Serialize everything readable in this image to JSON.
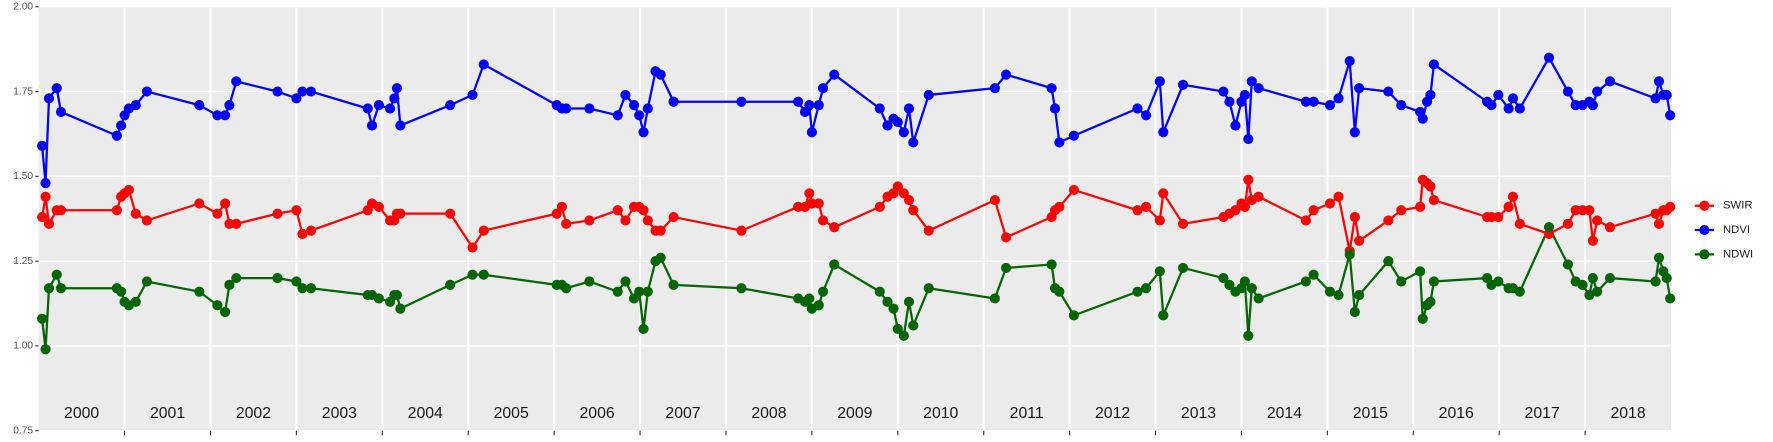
{
  "chart_data": {
    "type": "line",
    "x": [
      2000.04,
      2000.08,
      2000.12,
      2000.21,
      2000.26,
      2000.91,
      2000.96,
      2001.0,
      2001.05,
      2001.13,
      2001.26,
      2001.87,
      2002.08,
      2002.17,
      2002.22,
      2002.3,
      2002.78,
      2003.0,
      2003.07,
      2003.17,
      2003.83,
      2003.88,
      2003.96,
      2004.09,
      2004.14,
      2004.17,
      2004.21,
      2004.79,
      2005.05,
      2005.18,
      2006.03,
      2006.09,
      2006.14,
      2006.41,
      2006.74,
      2006.83,
      2006.93,
      2006.99,
      2007.04,
      2007.09,
      2007.18,
      2007.24,
      2007.39,
      2008.18,
      2008.84,
      2008.92,
      2008.97,
      2009.0,
      2009.08,
      2009.13,
      2009.26,
      2009.79,
      2009.88,
      2009.95,
      2010.0,
      2010.07,
      2010.13,
      2010.18,
      2010.36,
      2011.13,
      2011.26,
      2011.79,
      2011.83,
      2011.88,
      2012.05,
      2012.79,
      2012.89,
      2013.05,
      2013.09,
      2013.32,
      2013.79,
      2013.86,
      2013.93,
      2014.0,
      2014.04,
      2014.08,
      2014.12,
      2014.2,
      2014.75,
      2014.84,
      2015.03,
      2015.13,
      2015.26,
      2015.32,
      2015.37,
      2015.71,
      2015.86,
      2016.08,
      2016.11,
      2016.16,
      2016.2,
      2016.24,
      2016.86,
      2016.91,
      2016.99,
      2017.11,
      2017.16,
      2017.24,
      2017.58,
      2017.8,
      2017.89,
      2017.97,
      2018.05,
      2018.09,
      2018.14,
      2018.29,
      2018.82,
      2018.86,
      2018.91,
      2018.95,
      2018.99
    ],
    "series": [
      {
        "name": "SWIR",
        "color": "#ff0000",
        "values": [
          1.38,
          1.44,
          1.36,
          1.4,
          1.4,
          1.4,
          1.44,
          1.45,
          1.46,
          1.39,
          1.37,
          1.42,
          1.39,
          1.42,
          1.36,
          1.36,
          1.39,
          1.4,
          1.33,
          1.34,
          1.4,
          1.42,
          1.41,
          1.37,
          1.37,
          1.39,
          1.39,
          1.39,
          1.29,
          1.34,
          1.39,
          1.41,
          1.36,
          1.37,
          1.4,
          1.37,
          1.41,
          1.41,
          1.4,
          1.37,
          1.34,
          1.34,
          1.38,
          1.34,
          1.41,
          1.41,
          1.45,
          1.42,
          1.42,
          1.37,
          1.35,
          1.41,
          1.44,
          1.45,
          1.47,
          1.45,
          1.43,
          1.4,
          1.34,
          1.43,
          1.32,
          1.38,
          1.4,
          1.41,
          1.46,
          1.4,
          1.41,
          1.37,
          1.45,
          1.36,
          1.38,
          1.39,
          1.4,
          1.42,
          1.41,
          1.49,
          1.43,
          1.44,
          1.37,
          1.4,
          1.42,
          1.44,
          1.28,
          1.38,
          1.31,
          1.37,
          1.4,
          1.41,
          1.49,
          1.48,
          1.47,
          1.43,
          1.38,
          1.38,
          1.38,
          1.41,
          1.44,
          1.36,
          1.33,
          1.36,
          1.4,
          1.4,
          1.4,
          1.31,
          1.37,
          1.35,
          1.39,
          1.36,
          1.4,
          1.4,
          1.41
        ]
      },
      {
        "name": "NDVI",
        "color": "#0000ff",
        "values": [
          1.59,
          1.48,
          1.73,
          1.76,
          1.69,
          1.62,
          1.65,
          1.68,
          1.7,
          1.71,
          1.75,
          1.71,
          1.68,
          1.68,
          1.71,
          1.78,
          1.75,
          1.73,
          1.75,
          1.75,
          1.7,
          1.65,
          1.71,
          1.7,
          1.73,
          1.76,
          1.65,
          1.71,
          1.74,
          1.83,
          1.71,
          1.7,
          1.7,
          1.7,
          1.68,
          1.74,
          1.71,
          1.68,
          1.63,
          1.7,
          1.81,
          1.8,
          1.72,
          1.72,
          1.72,
          1.69,
          1.71,
          1.63,
          1.71,
          1.76,
          1.8,
          1.7,
          1.65,
          1.67,
          1.66,
          1.63,
          1.7,
          1.6,
          1.74,
          1.76,
          1.8,
          1.76,
          1.7,
          1.6,
          1.62,
          1.7,
          1.68,
          1.78,
          1.63,
          1.77,
          1.75,
          1.72,
          1.65,
          1.72,
          1.74,
          1.61,
          1.78,
          1.76,
          1.72,
          1.72,
          1.71,
          1.73,
          1.84,
          1.63,
          1.76,
          1.75,
          1.71,
          1.69,
          1.67,
          1.72,
          1.74,
          1.83,
          1.72,
          1.71,
          1.74,
          1.7,
          1.73,
          1.7,
          1.85,
          1.75,
          1.71,
          1.71,
          1.72,
          1.71,
          1.75,
          1.78,
          1.73,
          1.78,
          1.74,
          1.74,
          1.68
        ]
      },
      {
        "name": "NDWI",
        "color": "#006400",
        "values": [
          1.08,
          0.99,
          1.17,
          1.21,
          1.17,
          1.17,
          1.16,
          1.13,
          1.12,
          1.13,
          1.19,
          1.16,
          1.12,
          1.1,
          1.18,
          1.2,
          1.2,
          1.19,
          1.17,
          1.17,
          1.15,
          1.15,
          1.14,
          1.13,
          1.15,
          1.15,
          1.11,
          1.18,
          1.21,
          1.21,
          1.18,
          1.18,
          1.17,
          1.19,
          1.16,
          1.19,
          1.14,
          1.16,
          1.05,
          1.16,
          1.25,
          1.26,
          1.18,
          1.17,
          1.14,
          1.13,
          1.14,
          1.11,
          1.12,
          1.16,
          1.24,
          1.16,
          1.13,
          1.11,
          1.05,
          1.03,
          1.13,
          1.06,
          1.17,
          1.14,
          1.23,
          1.24,
          1.17,
          1.16,
          1.09,
          1.16,
          1.17,
          1.22,
          1.09,
          1.23,
          1.2,
          1.18,
          1.16,
          1.17,
          1.19,
          1.03,
          1.17,
          1.14,
          1.19,
          1.21,
          1.16,
          1.15,
          1.27,
          1.1,
          1.15,
          1.25,
          1.19,
          1.22,
          1.08,
          1.12,
          1.13,
          1.19,
          1.2,
          1.18,
          1.19,
          1.17,
          1.17,
          1.16,
          1.35,
          1.24,
          1.19,
          1.18,
          1.15,
          1.2,
          1.16,
          1.2,
          1.19,
          1.26,
          1.22,
          1.2,
          1.14
        ]
      }
    ],
    "xlim": [
      2000,
      2019
    ],
    "xticks": [
      2001,
      2002,
      2003,
      2004,
      2005,
      2006,
      2007,
      2008,
      2009,
      2010,
      2011,
      2012,
      2013,
      2014,
      2015,
      2016,
      2017,
      2018
    ],
    "year_labels": [
      {
        "value": 2000.5,
        "label": "2000"
      },
      {
        "value": 2001.5,
        "label": "2001"
      },
      {
        "value": 2002.5,
        "label": "2002"
      },
      {
        "value": 2003.5,
        "label": "2003"
      },
      {
        "value": 2004.5,
        "label": "2004"
      },
      {
        "value": 2005.5,
        "label": "2005"
      },
      {
        "value": 2006.5,
        "label": "2006"
      },
      {
        "value": 2007.5,
        "label": "2007"
      },
      {
        "value": 2008.5,
        "label": "2008"
      },
      {
        "value": 2009.5,
        "label": "2009"
      },
      {
        "value": 2010.5,
        "label": "2010"
      },
      {
        "value": 2011.5,
        "label": "2011"
      },
      {
        "value": 2012.5,
        "label": "2012"
      },
      {
        "value": 2013.5,
        "label": "2013"
      },
      {
        "value": 2014.5,
        "label": "2014"
      },
      {
        "value": 2015.5,
        "label": "2015"
      },
      {
        "value": 2016.5,
        "label": "2016"
      },
      {
        "value": 2017.5,
        "label": "2017"
      },
      {
        "value": 2018.5,
        "label": "2018"
      }
    ],
    "ylim": [
      0.75,
      2.0
    ],
    "yticks": [
      {
        "value": 0.75,
        "label": "0.75"
      },
      {
        "value": 1.0,
        "label": "1.00"
      },
      {
        "value": 1.25,
        "label": "1.25"
      },
      {
        "value": 1.5,
        "label": "1.50"
      },
      {
        "value": 1.75,
        "label": "1.75"
      },
      {
        "value": 2.0,
        "label": "2.00"
      }
    ],
    "grid": true,
    "legend": "right"
  }
}
